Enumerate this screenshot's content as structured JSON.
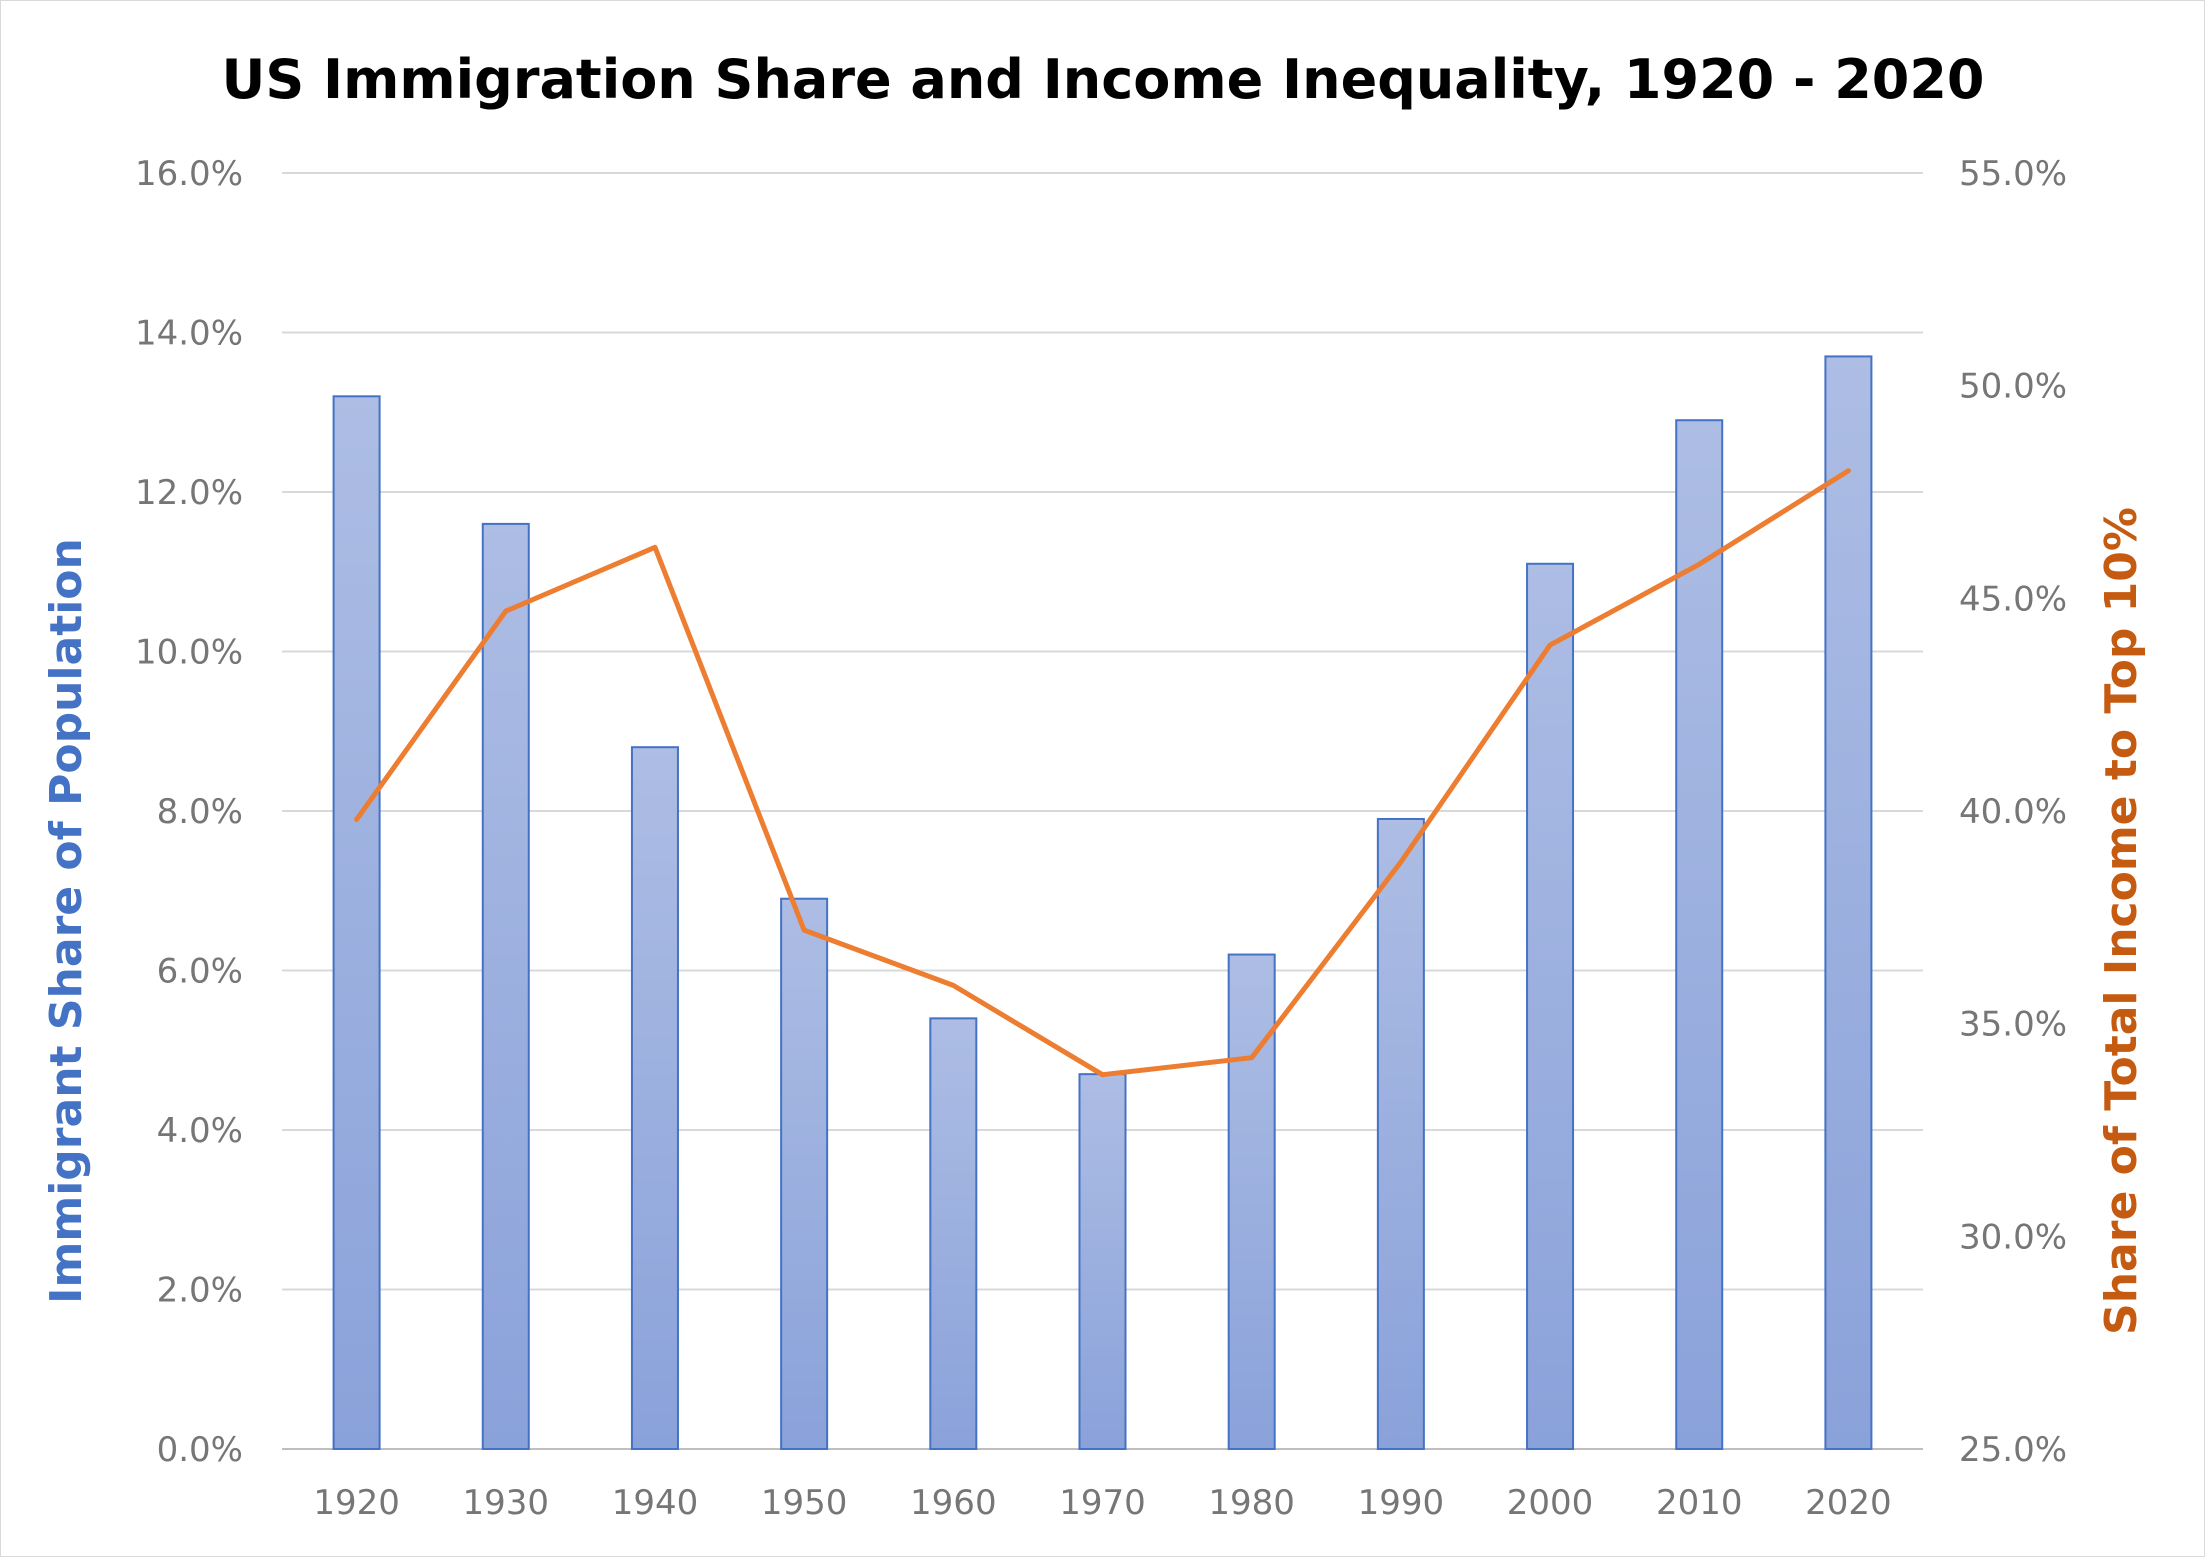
{
  "chart_data": {
    "type": "bar",
    "title": "US Immigration Share and Income Inequality, 1920 - 2020",
    "categories": [
      "1920",
      "1930",
      "1940",
      "1950",
      "1960",
      "1970",
      "1980",
      "1990",
      "2000",
      "2010",
      "2020"
    ],
    "series": [
      {
        "type": "bar",
        "axis": "left",
        "color": "#8fa6dc",
        "values": [
          13.2,
          11.6,
          8.8,
          6.9,
          5.4,
          4.7,
          6.2,
          7.9,
          11.1,
          12.9,
          13.7
        ]
      },
      {
        "type": "line",
        "axis": "right",
        "color": "#ed7d31",
        "values": [
          39.8,
          44.7,
          46.2,
          37.2,
          35.9,
          33.8,
          34.2,
          38.8,
          43.9,
          45.8,
          48.0
        ]
      }
    ],
    "ylabel": "Immigrant Share of Population",
    "ylabel_color": "#4472c4",
    "ylim": [
      0,
      16
    ],
    "yticks": [
      "0.0%",
      "2.0%",
      "4.0%",
      "6.0%",
      "8.0%",
      "10.0%",
      "12.0%",
      "14.0%",
      "16.0%"
    ],
    "y2label": "Share of Total Income to Top 10%",
    "y2label_color": "#c55a11",
    "y2lim": [
      25,
      55
    ],
    "y2ticks": [
      "25.0%",
      "30.0%",
      "35.0%",
      "40.0%",
      "45.0%",
      "50.0%",
      "55.0%"
    ],
    "grid": true,
    "legend": "none"
  }
}
